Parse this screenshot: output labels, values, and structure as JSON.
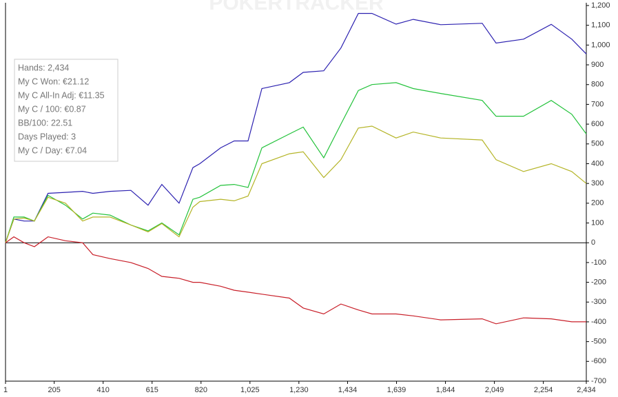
{
  "chart_data": {
    "type": "line",
    "watermark": "POKERTRACKER",
    "stats": [
      "Hands: 2,434",
      "My C Won: €21.12",
      "My C All-In Adj: €11.35",
      "My C / 100: €0.87",
      "BB/100: 22.51",
      "Days Played: 3",
      "My C / Day: €7.04"
    ],
    "x": [
      1,
      36,
      79,
      122,
      179,
      252,
      324,
      367,
      439,
      526,
      598,
      656,
      728,
      786,
      815,
      902,
      959,
      1017,
      1075,
      1190,
      1248,
      1334,
      1406,
      1479,
      1536,
      1637,
      1709,
      1824,
      1998,
      2056,
      2171,
      2287,
      2373,
      2434
    ],
    "series": [
      {
        "color": "#2b20b0",
        "values": [
          0,
          120,
          110,
          110,
          250,
          255,
          260,
          250,
          260,
          265,
          190,
          295,
          200,
          380,
          400,
          480,
          515,
          515,
          780,
          810,
          862,
          870,
          985,
          1160,
          1160,
          1106,
          1130,
          1103,
          1110,
          1010,
          1030,
          1105,
          1030,
          955
        ]
      },
      {
        "color": "#22c23a",
        "values": [
          0,
          130,
          130,
          110,
          240,
          190,
          120,
          150,
          140,
          90,
          60,
          100,
          40,
          220,
          230,
          290,
          295,
          280,
          480,
          550,
          585,
          430,
          600,
          770,
          800,
          810,
          780,
          755,
          720,
          640,
          640,
          720,
          650,
          550
        ]
      },
      {
        "color": "#b4b426",
        "values": [
          0,
          120,
          125,
          110,
          230,
          200,
          110,
          130,
          130,
          90,
          55,
          97,
          30,
          180,
          208,
          220,
          212,
          236,
          400,
          450,
          460,
          330,
          420,
          580,
          590,
          530,
          560,
          530,
          520,
          420,
          360,
          400,
          360,
          300
        ]
      },
      {
        "color": "#c81e28",
        "values": [
          0,
          30,
          0,
          -20,
          30,
          10,
          0,
          -60,
          -80,
          -100,
          -130,
          -170,
          -180,
          -200,
          -200,
          -220,
          -240,
          -250,
          -260,
          -280,
          -330,
          -360,
          -310,
          -340,
          -360,
          -360,
          -370,
          -390,
          -385,
          -410,
          -380,
          -385,
          -400,
          -400
        ]
      }
    ],
    "xlim": [
      1,
      2434
    ],
    "xticks": [
      1,
      205,
      410,
      615,
      820,
      {
        "value": 1025,
        "label": "1,025"
      },
      {
        "value": 1230,
        "label": "1,230"
      },
      {
        "value": 1434,
        "label": "1,434"
      },
      {
        "value": 1639,
        "label": "1,639"
      },
      {
        "value": 1844,
        "label": "1,844"
      },
      {
        "value": 2049,
        "label": "2,049"
      },
      {
        "value": 2254,
        "label": "2,254"
      },
      {
        "value": 2434,
        "label": "2,434"
      }
    ],
    "ylim": [
      -700,
      1200
    ],
    "yticks": [
      -700,
      -600,
      -500,
      -400,
      -300,
      -200,
      -100,
      0,
      100,
      200,
      300,
      400,
      500,
      600,
      700,
      800,
      900,
      {
        "value": 1000,
        "label": "1,000"
      },
      {
        "value": 1100,
        "label": "1,100"
      },
      {
        "value": 1200,
        "label": "1,200"
      }
    ],
    "grid": false
  }
}
